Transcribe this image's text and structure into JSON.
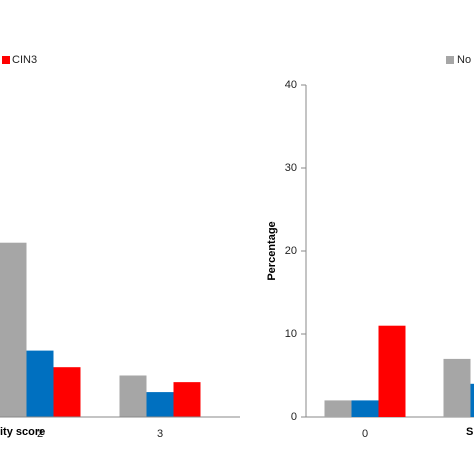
{
  "chart_data": [
    {
      "type": "bar",
      "categories": [
        "2",
        "3"
      ],
      "xlabel": "ity score",
      "ylabel": "",
      "ylim": [
        0,
        40
      ],
      "grid": false,
      "legend": {
        "placement": "top-left",
        "entries": [
          "CIN3"
        ]
      },
      "series": [
        {
          "name": "",
          "values": [
            21,
            5
          ],
          "color": "#a6a6a6"
        },
        {
          "name": "",
          "values": [
            8,
            3
          ],
          "color": "#0070c0"
        },
        {
          "name": "CIN3",
          "values": [
            6,
            4.2
          ],
          "color": "#ff0000"
        }
      ]
    },
    {
      "type": "bar",
      "categories": [
        "0",
        ""
      ],
      "xlabel": "S",
      "ylabel": "Percentage",
      "ylim": [
        0,
        40
      ],
      "yticks": [
        "0",
        "10",
        "20",
        "30",
        "40"
      ],
      "grid": false,
      "legend": {
        "placement": "top-right",
        "entries": [
          "No"
        ]
      },
      "series": [
        {
          "name": "No",
          "values": [
            2,
            7
          ],
          "color": "#a6a6a6"
        },
        {
          "name": "",
          "values": [
            2,
            4
          ],
          "color": "#0070c0"
        },
        {
          "name": "",
          "values": [
            11,
            null
          ],
          "color": "#ff0000"
        }
      ]
    }
  ]
}
